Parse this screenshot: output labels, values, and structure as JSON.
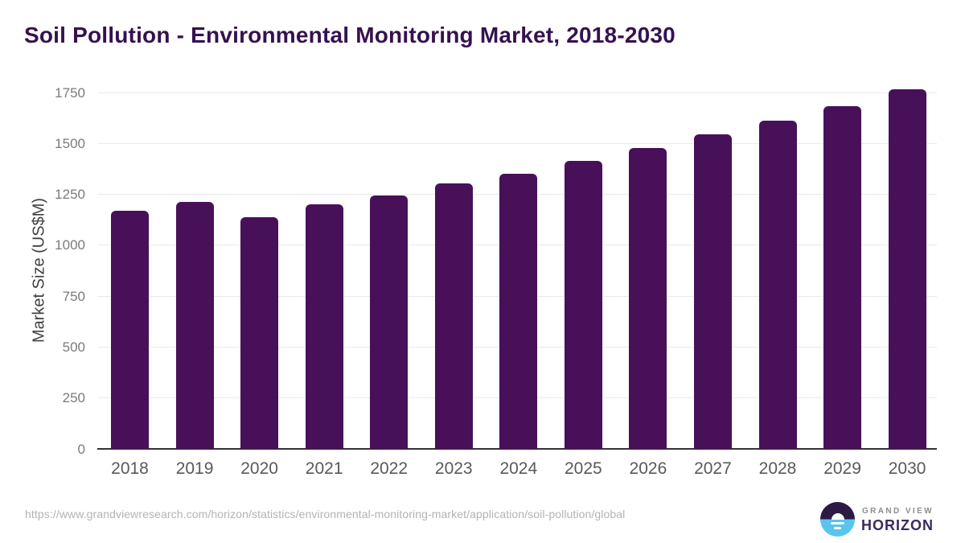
{
  "title": "Soil Pollution - Environmental Monitoring Market, 2018-2030",
  "chart_data": {
    "type": "bar",
    "title": "Soil Pollution - Environmental Monitoring Market, 2018-2030",
    "categories": [
      "2018",
      "2019",
      "2020",
      "2021",
      "2022",
      "2023",
      "2024",
      "2025",
      "2026",
      "2027",
      "2028",
      "2029",
      "2030"
    ],
    "values": [
      1170,
      1212,
      1138,
      1200,
      1244,
      1302,
      1352,
      1414,
      1477,
      1544,
      1610,
      1683,
      1766
    ],
    "xlabel": "",
    "ylabel": "Market Size (US$M)",
    "ylim": [
      0,
      1750
    ],
    "ytick_interval": 250,
    "yticks": [
      0,
      250,
      500,
      750,
      1000,
      1250,
      1500,
      1750
    ],
    "grid": "horizontal",
    "legend_position": "none",
    "bar_color": "#49105a"
  },
  "colors": {
    "bar": "#49105a",
    "title": "#36114f",
    "gridline": "#e9e9e9",
    "axis_line": "#333333",
    "y_tick_label": "#7a7a7a",
    "x_tick_label": "#595959",
    "source_url": "#b3b3b3",
    "logo_purple": "#2c1a45",
    "logo_blue": "#58c4f0"
  },
  "footer": {
    "source_url": "https://www.grandviewresearch.com/horizon/statistics/environmental-monitoring-market/application/soil-pollution/global",
    "brand": {
      "line1": "GRAND VIEW",
      "line2": "HORIZON",
      "logo_icon": "horizon-sun-circle-icon"
    }
  }
}
